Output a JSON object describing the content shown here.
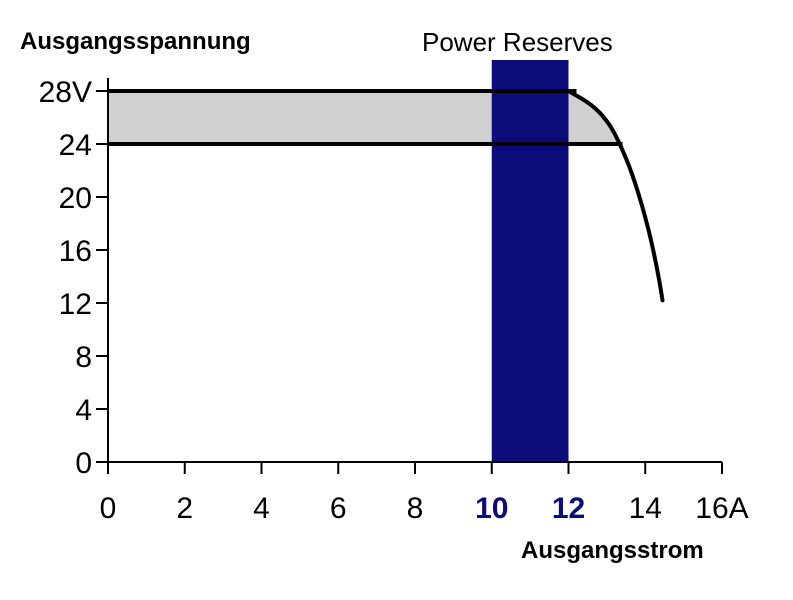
{
  "chart_data": {
    "type": "line",
    "ylabel": "Ausgangsspannung",
    "xlabel": "Ausgangsstrom",
    "xlim": [
      0,
      16
    ],
    "ylim": [
      0,
      28
    ],
    "x_ticks": [
      {
        "value": 0,
        "label": "0"
      },
      {
        "value": 2,
        "label": "2"
      },
      {
        "value": 4,
        "label": "4"
      },
      {
        "value": 6,
        "label": "6"
      },
      {
        "value": 8,
        "label": "8"
      },
      {
        "value": 10,
        "label": "10",
        "highlight": true
      },
      {
        "value": 12,
        "label": "12",
        "highlight": true
      },
      {
        "value": 14,
        "label": "14"
      },
      {
        "value": 16,
        "label": "16A"
      }
    ],
    "y_ticks": [
      {
        "value": 0,
        "label": "0"
      },
      {
        "value": 4,
        "label": "4"
      },
      {
        "value": 8,
        "label": "8"
      },
      {
        "value": 12,
        "label": "12"
      },
      {
        "value": 16,
        "label": "16"
      },
      {
        "value": 20,
        "label": "20"
      },
      {
        "value": 24,
        "label": "24"
      },
      {
        "value": 28,
        "label": "28V"
      }
    ],
    "voltage_lines": [
      {
        "voltage": 28,
        "x_start": 0,
        "x_end": 12
      },
      {
        "voltage": 24,
        "x_start": 0,
        "x_end": 13.2
      }
    ],
    "shaded_range": {
      "y_low": 24,
      "y_high": 28
    },
    "highlight_band": {
      "label": "Power Reserves",
      "x_start": 10,
      "x_end": 12
    },
    "curve": [
      {
        "x": 12.0,
        "y": 28
      },
      {
        "x": 12.6,
        "y": 27
      },
      {
        "x": 13.0,
        "y": 25.8
      },
      {
        "x": 13.3,
        "y": 24.3
      },
      {
        "x": 13.7,
        "y": 21.5
      },
      {
        "x": 14.1,
        "y": 17.5
      },
      {
        "x": 14.35,
        "y": 14
      },
      {
        "x": 14.45,
        "y": 12.2
      }
    ],
    "colors": {
      "band": "#0c0c7a",
      "shade": "#d0d0d0",
      "highlight_tick": "#0c0c7a",
      "line": "#000000"
    }
  }
}
